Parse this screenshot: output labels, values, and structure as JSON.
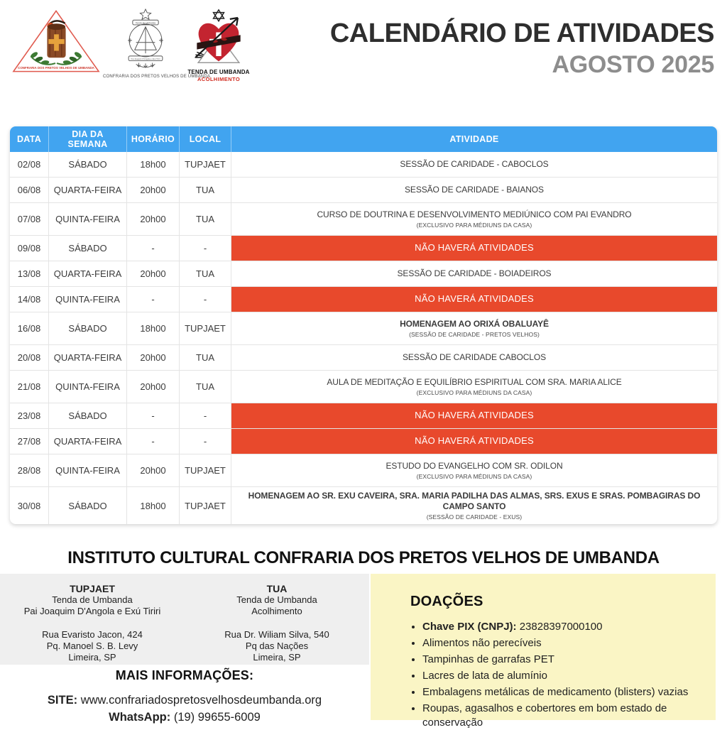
{
  "colors": {
    "header_blue": "#41A4F0",
    "alert_red": "#E8492C",
    "panel_gray": "#EFEFEF",
    "panel_yellow": "#FAF5C5",
    "subtitle_gray": "#8D8D8D"
  },
  "header": {
    "title": "CALENDÁRIO DE ATIVIDADES",
    "subtitle": "AGOSTO 2025",
    "logo1_caption": "CONFRARIA DOS PRETOS VELHOS DE UMBANDA",
    "logo2_ribbon_top": "Tenda de Umbanda",
    "logo2_ribbon_bottom": "Pai Joaquim D'Angola e Exú Tiriri",
    "logo2_caption": "CONFRARIA DOS PRETOS VELHOS DE UMBANDA",
    "logo3_caption_line1": "TENDA DE UMBANDA",
    "logo3_caption_line2": "ACOLHIMENTO"
  },
  "table": {
    "columns": [
      "DATA",
      "DIA DA SEMANA",
      "HORÁRIO",
      "LOCAL",
      "ATIVIDADE"
    ],
    "rows": [
      {
        "data": "02/08",
        "dia": "SÁBADO",
        "horario": "18h00",
        "local": "TUPJAET",
        "atividade": "SESSÃO DE CARIDADE - CABOCLOS",
        "sub": "",
        "alert": false,
        "bold": false
      },
      {
        "data": "06/08",
        "dia": "QUARTA-FEIRA",
        "horario": "20h00",
        "local": "TUA",
        "atividade": "SESSÃO DE CARIDADE - BAIANOS",
        "sub": "",
        "alert": false,
        "bold": false
      },
      {
        "data": "07/08",
        "dia": "QUINTA-FEIRA",
        "horario": "20h00",
        "local": "TUA",
        "atividade": "CURSO DE DOUTRINA E DESENVOLVIMENTO MEDIÚNICO COM PAI EVANDRO",
        "sub": "(EXCLUSIVO PARA MÉDIUNS DA CASA)",
        "alert": false,
        "bold": false
      },
      {
        "data": "09/08",
        "dia": "SÁBADO",
        "horario": "-",
        "local": "-",
        "atividade": "NÃO HAVERÁ ATIVIDADES",
        "sub": "",
        "alert": true,
        "bold": false
      },
      {
        "data": "13/08",
        "dia": "QUARTA-FEIRA",
        "horario": "20h00",
        "local": "TUA",
        "atividade": "SESSÃO DE CARIDADE - BOIADEIROS",
        "sub": "",
        "alert": false,
        "bold": false
      },
      {
        "data": "14/08",
        "dia": "QUINTA-FEIRA",
        "horario": "-",
        "local": "-",
        "atividade": "NÃO HAVERÁ ATIVIDADES",
        "sub": "",
        "alert": true,
        "bold": false
      },
      {
        "data": "16/08",
        "dia": "SÁBADO",
        "horario": "18h00",
        "local": "TUPJAET",
        "atividade": "HOMENAGEM AO ORIXÁ OBALUAYÊ",
        "sub": "(SESSÃO DE CARIDADE - PRETOS VELHOS)",
        "alert": false,
        "bold": true
      },
      {
        "data": "20/08",
        "dia": "QUARTA-FEIRA",
        "horario": "20h00",
        "local": "TUA",
        "atividade": "SESSÃO DE CARIDADE CABOCLOS",
        "sub": "",
        "alert": false,
        "bold": false
      },
      {
        "data": "21/08",
        "dia": "QUINTA-FEIRA",
        "horario": "20h00",
        "local": "TUA",
        "atividade": "AULA DE MEDITAÇÃO E EQUILÍBRIO ESPIRITUAL COM SRA. MARIA ALICE",
        "sub": "(EXCLUSIVO PARA MÉDIUNS DA CASA)",
        "alert": false,
        "bold": false
      },
      {
        "data": "23/08",
        "dia": "SÁBADO",
        "horario": "-",
        "local": "-",
        "atividade": "NÃO HAVERÁ ATIVIDADES",
        "sub": "",
        "alert": true,
        "bold": false
      },
      {
        "data": "27/08",
        "dia": "QUARTA-FEIRA",
        "horario": "-",
        "local": "-",
        "atividade": "NÃO HAVERÁ ATIVIDADES",
        "sub": "",
        "alert": true,
        "bold": false
      },
      {
        "data": "28/08",
        "dia": "QUINTA-FEIRA",
        "horario": "20h00",
        "local": "TUPJAET",
        "atividade": "ESTUDO DO EVANGELHO COM SR. ODILON",
        "sub": "(EXCLUSIVO PARA MÉDIUNS DA CASA)",
        "alert": false,
        "bold": false
      },
      {
        "data": "30/08",
        "dia": "SÁBADO",
        "horario": "18h00",
        "local": "TUPJAET",
        "atividade": "HOMENAGEM AO SR. EXU CAVEIRA, SRA. MARIA PADILHA DAS ALMAS, SRS. EXUS E SRAS. POMBAGIRAS DO CAMPO SANTO",
        "sub": "(SESSÃO DE CARIDADE - EXUS)",
        "alert": false,
        "bold": true
      }
    ]
  },
  "footer": {
    "org_title": "INSTITUTO CULTURAL CONFRARIA DOS PRETOS VELHOS DE UMBANDA",
    "locations": [
      {
        "name": "TUPJAET",
        "lines": [
          "Tenda de Umbanda",
          "Pai Joaquim D'Angola e Exú Tiriri"
        ],
        "address": [
          "Rua Evaristo Jacon, 424",
          "Pq. Manoel S. B. Levy",
          "Limeira, SP"
        ]
      },
      {
        "name": "TUA",
        "lines": [
          "Tenda de Umbanda",
          "Acolhimento"
        ],
        "address": [
          "Rua Dr. Wiliam Silva, 540",
          "Pq das Nações",
          "Limeira, SP"
        ]
      }
    ],
    "donations": {
      "title": "DOAÇÕES",
      "items": [
        {
          "bold": "Chave PIX (CNPJ):",
          "text": "23828397000100"
        },
        {
          "bold": "",
          "text": "Alimentos não perecíveis"
        },
        {
          "bold": "",
          "text": "Tampinhas de garrafas PET"
        },
        {
          "bold": "",
          "text": "Lacres de lata de alumínio"
        },
        {
          "bold": "",
          "text": "Embalagens metálicas de medicamento (blisters) vazias"
        },
        {
          "bold": "",
          "text": "Roupas, agasalhos e cobertores em bom estado de conservação"
        }
      ]
    },
    "more_info": {
      "title": "MAIS INFORMAÇÕES:",
      "site_label": "SITE:",
      "site_value": "www.confrariadospretosvelhosdeumbanda.org",
      "whatsapp_label": "WhatsApp:",
      "whatsapp_value": "(19) 99655-6009"
    }
  }
}
